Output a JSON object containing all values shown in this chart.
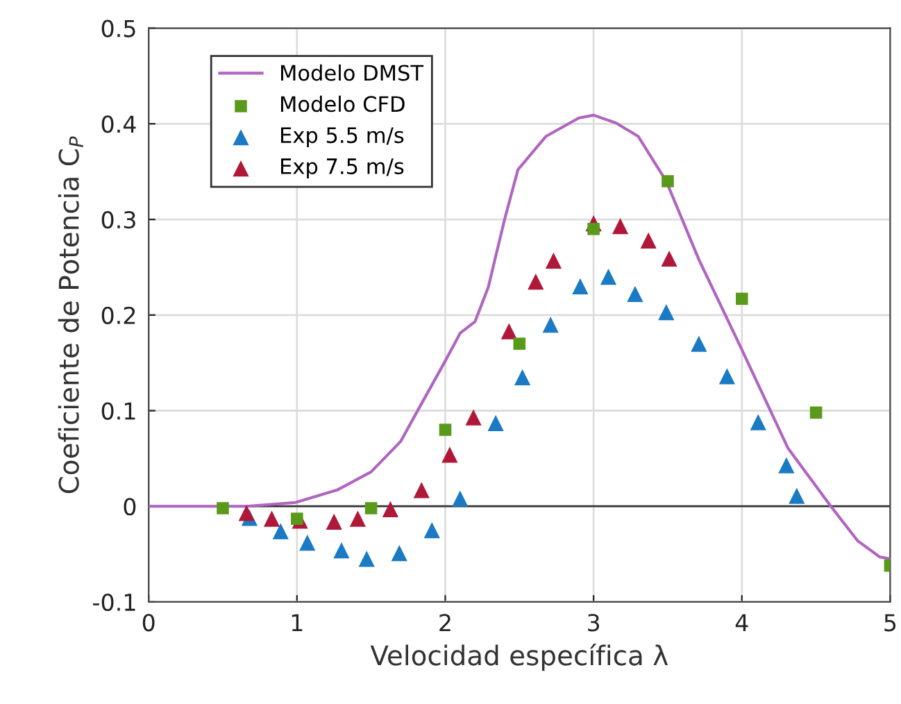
{
  "chart_data": {
    "type": "line",
    "xlabel": "Velocidad específica λ",
    "ylabel": "Coeficiente de Potencia C$_{P}$",
    "xlim": [
      0,
      5
    ],
    "ylim": [
      -0.1,
      0.5
    ],
    "xticks": [
      0,
      1,
      2,
      3,
      4,
      5
    ],
    "yticks": [
      -0.1,
      0,
      0.1,
      0.2,
      0.3,
      0.4,
      0.5
    ],
    "grid": true,
    "legend": "top left",
    "ref_lines": [
      {
        "axis": "y",
        "value": 0,
        "color": "#333333"
      }
    ],
    "series": [
      {
        "name": "Modelo DMST",
        "color": "#b065c0",
        "marker": "none",
        "line_style": "solid",
        "x": [
          0,
          0.5,
          0.66,
          0.99,
          1.27,
          1.5,
          1.7,
          1.81,
          2.0,
          2.1,
          2.2,
          2.29,
          2.4,
          2.49,
          2.68,
          2.9,
          3.0,
          3.15,
          3.3,
          3.49,
          3.71,
          3.99,
          4.31,
          4.6,
          4.78,
          4.93,
          5.0
        ],
        "values": [
          0,
          0,
          0,
          0.004,
          0.017,
          0.036,
          0.068,
          0.099,
          0.152,
          0.181,
          0.193,
          0.229,
          0.3,
          0.352,
          0.387,
          0.406,
          0.409,
          0.401,
          0.387,
          0.34,
          0.258,
          0.167,
          0.061,
          0,
          -0.036,
          -0.053,
          -0.055
        ]
      },
      {
        "name": "Modelo CFD",
        "type": "scatter",
        "color": "#5a9a1a",
        "marker": "square",
        "x": [
          0.5,
          1,
          1.5,
          2,
          2.5,
          3,
          3.5,
          4,
          4.5,
          5
        ],
        "values": [
          -0.002,
          -0.013,
          -0.002,
          0.08,
          0.17,
          0.29,
          0.34,
          0.217,
          0.098,
          -0.062
        ]
      },
      {
        "name": "Exp 5.5 m/s",
        "type": "scatter",
        "color": "#1a7ac4",
        "marker": "triangle",
        "x": [
          0.68,
          0.89,
          1.07,
          1.3,
          1.47,
          1.69,
          1.91,
          2.1,
          2.34,
          2.52,
          2.71,
          2.91,
          3.1,
          3.28,
          3.49,
          3.71,
          3.9,
          4.11,
          4.3,
          4.37
        ],
        "values": [
          -0.012,
          -0.026,
          -0.038,
          -0.046,
          -0.055,
          -0.049,
          -0.025,
          0.008,
          0.087,
          0.135,
          0.19,
          0.23,
          0.24,
          0.222,
          0.203,
          0.17,
          0.136,
          0.088,
          0.043,
          0.011
        ]
      },
      {
        "name": "Exp 7.5 m/s",
        "type": "scatter",
        "color": "#b0183a",
        "marker": "triangle",
        "x": [
          0.66,
          0.83,
          1.02,
          1.25,
          1.41,
          1.63,
          1.84,
          2.03,
          2.19,
          2.43,
          2.61,
          2.73,
          3.0,
          3.18,
          3.37,
          3.51
        ],
        "values": [
          -0.007,
          -0.013,
          -0.015,
          -0.016,
          -0.013,
          -0.003,
          0.017,
          0.054,
          0.093,
          0.183,
          0.235,
          0.257,
          0.296,
          0.293,
          0.278,
          0.259
        ]
      }
    ]
  }
}
